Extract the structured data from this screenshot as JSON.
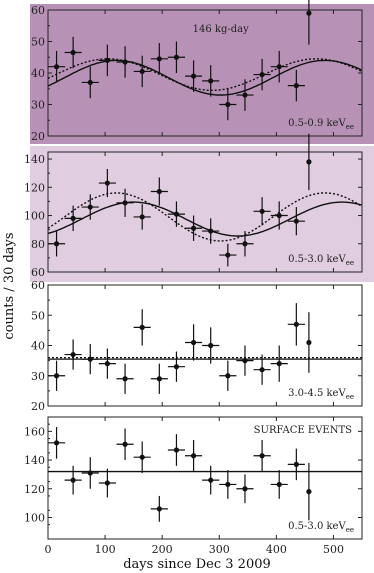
{
  "chart_data": [
    {
      "type": "scatter",
      "ylim": [
        20,
        60
      ],
      "yticks": [
        20,
        30,
        40,
        50,
        60
      ],
      "bg_color": "#b892b6",
      "annotation": "146 kg-day",
      "energy_label": "0.5-0.9 keV",
      "energy_sub": "ee",
      "points": [
        {
          "x": 15,
          "y": 42,
          "err": 5
        },
        {
          "x": 44,
          "y": 46.5,
          "err": 5
        },
        {
          "x": 74,
          "y": 37,
          "err": 5
        },
        {
          "x": 104,
          "y": 44,
          "err": 5
        },
        {
          "x": 135,
          "y": 43.5,
          "err": 5
        },
        {
          "x": 165,
          "y": 40.5,
          "err": 5
        },
        {
          "x": 195,
          "y": 44.5,
          "err": 5
        },
        {
          "x": 225,
          "y": 45,
          "err": 5
        },
        {
          "x": 255,
          "y": 39,
          "err": 5
        },
        {
          "x": 285,
          "y": 37.5,
          "err": 5
        },
        {
          "x": 315,
          "y": 30,
          "err": 5
        },
        {
          "x": 345,
          "y": 33,
          "err": 5
        },
        {
          "x": 375,
          "y": 39.5,
          "err": 5
        },
        {
          "x": 405,
          "y": 42,
          "err": 5
        },
        {
          "x": 435,
          "y": 36,
          "err": 5
        },
        {
          "x": 457,
          "y": 59,
          "err": 10
        }
      ],
      "curve_solid": {
        "mean": 38.5,
        "amp": 5.5,
        "peak": 120
      },
      "curve_dotted": {
        "mean": 39.5,
        "amp": 5,
        "peak": 105
      }
    },
    {
      "type": "scatter",
      "ylim": [
        60,
        145
      ],
      "yticks": [
        60,
        80,
        100,
        120,
        140
      ],
      "bg_color": "#e1cde0",
      "annotation": "",
      "energy_label": "0.5-3.0 keV",
      "energy_sub": "ee",
      "points": [
        {
          "x": 15,
          "y": 80,
          "err": 9
        },
        {
          "x": 44,
          "y": 98,
          "err": 9
        },
        {
          "x": 74,
          "y": 106,
          "err": 9
        },
        {
          "x": 104,
          "y": 123,
          "err": 10
        },
        {
          "x": 135,
          "y": 109,
          "err": 10
        },
        {
          "x": 165,
          "y": 99,
          "err": 9
        },
        {
          "x": 195,
          "y": 117,
          "err": 10
        },
        {
          "x": 225,
          "y": 101,
          "err": 9
        },
        {
          "x": 255,
          "y": 91,
          "err": 9
        },
        {
          "x": 285,
          "y": 89,
          "err": 9
        },
        {
          "x": 315,
          "y": 72,
          "err": 8
        },
        {
          "x": 345,
          "y": 80,
          "err": 9
        },
        {
          "x": 375,
          "y": 103,
          "err": 10
        },
        {
          "x": 405,
          "y": 100,
          "err": 10
        },
        {
          "x": 435,
          "y": 96,
          "err": 10
        },
        {
          "x": 457,
          "y": 138,
          "err": 20
        }
      ],
      "curve_solid": {
        "mean": 97.5,
        "amp": 12,
        "peak": 150
      },
      "curve_dotted": {
        "mean": 99,
        "amp": 17,
        "peak": 120
      }
    },
    {
      "type": "scatter",
      "ylim": [
        20,
        60
      ],
      "yticks": [
        20,
        30,
        40,
        50,
        60
      ],
      "bg_color": "#ffffff",
      "annotation": "",
      "energy_label": "3.0-4.5 keV",
      "energy_sub": "ee",
      "points": [
        {
          "x": 15,
          "y": 30,
          "err": 5
        },
        {
          "x": 44,
          "y": 37,
          "err": 5
        },
        {
          "x": 74,
          "y": 35.5,
          "err": 5
        },
        {
          "x": 104,
          "y": 34,
          "err": 5
        },
        {
          "x": 135,
          "y": 29,
          "err": 5
        },
        {
          "x": 165,
          "y": 46,
          "err": 6
        },
        {
          "x": 195,
          "y": 29,
          "err": 5
        },
        {
          "x": 225,
          "y": 33,
          "err": 5
        },
        {
          "x": 255,
          "y": 41,
          "err": 6
        },
        {
          "x": 285,
          "y": 40,
          "err": 6
        },
        {
          "x": 315,
          "y": 30,
          "err": 5
        },
        {
          "x": 345,
          "y": 35,
          "err": 5
        },
        {
          "x": 375,
          "y": 32,
          "err": 5
        },
        {
          "x": 405,
          "y": 34,
          "err": 6
        },
        {
          "x": 435,
          "y": 47,
          "err": 7
        },
        {
          "x": 457,
          "y": 41,
          "err": 10
        }
      ],
      "flat_solid": 35.5,
      "flat_dotted": 36
    },
    {
      "type": "scatter",
      "ylim": [
        85,
        170
      ],
      "yticks": [
        100,
        120,
        140,
        160
      ],
      "bg_color": "#ffffff",
      "annotation": "SURFACE EVENTS",
      "energy_label": "0.5-3.0 keV",
      "energy_sub": "ee",
      "points": [
        {
          "x": 15,
          "y": 152,
          "err": 11
        },
        {
          "x": 44,
          "y": 126,
          "err": 10
        },
        {
          "x": 74,
          "y": 131,
          "err": 11
        },
        {
          "x": 104,
          "y": 124,
          "err": 10
        },
        {
          "x": 135,
          "y": 151,
          "err": 11
        },
        {
          "x": 165,
          "y": 142,
          "err": 11
        },
        {
          "x": 195,
          "y": 106,
          "err": 9
        },
        {
          "x": 225,
          "y": 147,
          "err": 11
        },
        {
          "x": 255,
          "y": 143,
          "err": 11
        },
        {
          "x": 285,
          "y": 126,
          "err": 10
        },
        {
          "x": 315,
          "y": 123,
          "err": 10
        },
        {
          "x": 345,
          "y": 120,
          "err": 10
        },
        {
          "x": 375,
          "y": 143,
          "err": 11
        },
        {
          "x": 405,
          "y": 123,
          "err": 10
        },
        {
          "x": 435,
          "y": 137,
          "err": 11
        },
        {
          "x": 457,
          "y": 118,
          "err": 20
        }
      ],
      "flat_solid": 132
    }
  ],
  "xaxis": {
    "xlim": [
      0,
      550
    ],
    "xticks": [
      0,
      100,
      200,
      300,
      400,
      500
    ],
    "xlabel": "days since Dec 3 2009"
  },
  "ylabel": "counts / 30 days"
}
